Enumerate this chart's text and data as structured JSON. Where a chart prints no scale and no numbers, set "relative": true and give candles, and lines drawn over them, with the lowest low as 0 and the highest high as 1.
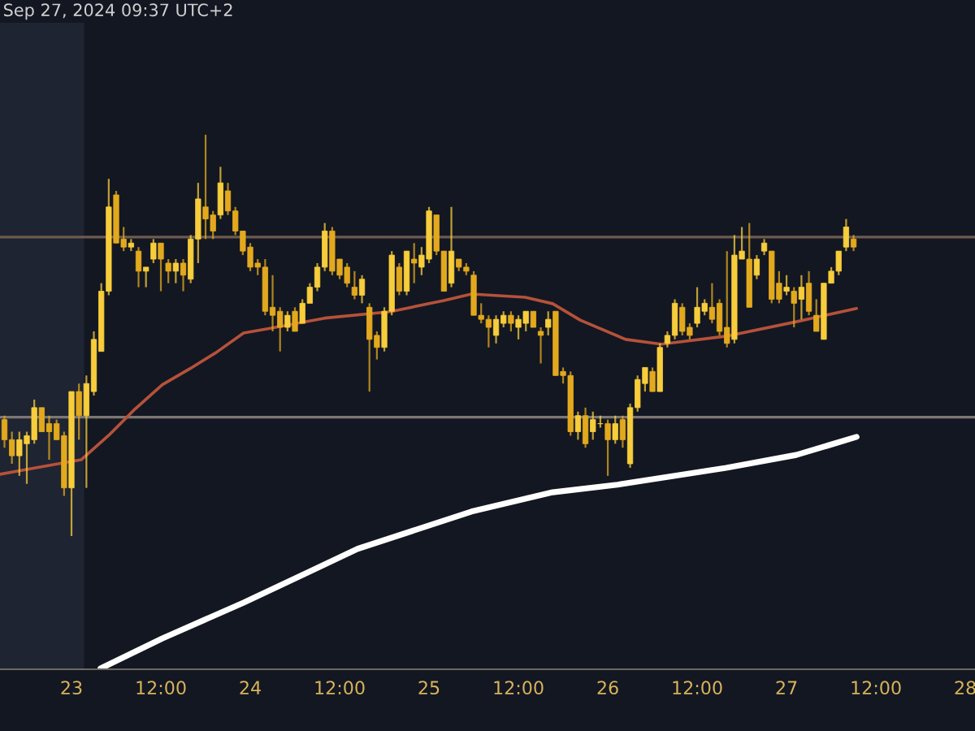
{
  "chart_data": {
    "type": "candlestick",
    "relative": true,
    "annotations": [
      "Sep 27, 2024 09:37 UTC+2"
    ],
    "x": [
      "2024-09-22T15:00",
      "2024-09-22T16:00",
      "2024-09-22T17:00",
      "2024-09-22T18:00",
      "2024-09-22T19:00",
      "2024-09-22T20:00",
      "2024-09-22T21:00",
      "2024-09-22T22:00",
      "2024-09-22T23:00",
      "2024-09-23T00:00",
      "2024-09-23T01:00",
      "2024-09-23T02:00",
      "2024-09-23T03:00",
      "2024-09-23T04:00",
      "2024-09-23T05:00",
      "2024-09-23T06:00",
      "2024-09-23T07:00",
      "2024-09-23T08:00",
      "2024-09-23T09:00",
      "2024-09-23T10:00",
      "2024-09-23T11:00",
      "2024-09-23T12:00",
      "2024-09-23T13:00",
      "2024-09-23T14:00",
      "2024-09-23T15:00",
      "2024-09-23T16:00",
      "2024-09-23T17:00",
      "2024-09-23T18:00",
      "2024-09-23T19:00",
      "2024-09-23T20:00",
      "2024-09-23T21:00",
      "2024-09-23T22:00",
      "2024-09-23T23:00",
      "2024-09-24T00:00",
      "2024-09-24T01:00",
      "2024-09-24T02:00",
      "2024-09-24T03:00",
      "2024-09-24T04:00",
      "2024-09-24T05:00",
      "2024-09-24T06:00",
      "2024-09-24T07:00",
      "2024-09-24T08:00",
      "2024-09-24T09:00",
      "2024-09-24T10:00",
      "2024-09-24T11:00",
      "2024-09-24T12:00",
      "2024-09-24T13:00",
      "2024-09-24T14:00",
      "2024-09-24T15:00",
      "2024-09-24T16:00",
      "2024-09-24T17:00",
      "2024-09-24T18:00",
      "2024-09-24T19:00",
      "2024-09-24T20:00",
      "2024-09-24T21:00",
      "2024-09-24T22:00",
      "2024-09-24T23:00",
      "2024-09-25T00:00",
      "2024-09-25T01:00",
      "2024-09-25T02:00",
      "2024-09-25T03:00",
      "2024-09-25T04:00",
      "2024-09-25T05:00",
      "2024-09-25T06:00",
      "2024-09-25T07:00",
      "2024-09-25T08:00",
      "2024-09-25T09:00",
      "2024-09-25T10:00",
      "2024-09-25T11:00",
      "2024-09-25T12:00",
      "2024-09-25T13:00",
      "2024-09-25T14:00",
      "2024-09-25T15:00",
      "2024-09-25T16:00",
      "2024-09-25T17:00",
      "2024-09-25T18:00",
      "2024-09-25T19:00",
      "2024-09-25T20:00",
      "2024-09-25T21:00",
      "2024-09-25T22:00",
      "2024-09-25T23:00",
      "2024-09-26T00:00",
      "2024-09-26T01:00",
      "2024-09-26T02:00",
      "2024-09-26T03:00",
      "2024-09-26T04:00",
      "2024-09-26T05:00",
      "2024-09-26T06:00",
      "2024-09-26T07:00",
      "2024-09-26T08:00",
      "2024-09-26T09:00",
      "2024-09-26T10:00",
      "2024-09-26T11:00",
      "2024-09-26T12:00",
      "2024-09-26T13:00",
      "2024-09-26T14:00",
      "2024-09-26T15:00",
      "2024-09-26T16:00",
      "2024-09-26T17:00",
      "2024-09-26T18:00",
      "2024-09-26T19:00",
      "2024-09-26T20:00",
      "2024-09-26T21:00",
      "2024-09-26T22:00",
      "2024-09-26T23:00",
      "2024-09-27T00:00",
      "2024-09-27T01:00",
      "2024-09-27T02:00",
      "2024-09-27T03:00",
      "2024-09-27T04:00",
      "2024-09-27T05:00",
      "2024-09-27T06:00",
      "2024-09-27T07:00",
      "2024-09-27T08:00",
      "2024-09-27T09:00"
    ],
    "ohlc": [
      [
        0.29,
        0.3,
        0.22,
        0.24
      ],
      [
        0.24,
        0.26,
        0.18,
        0.2
      ],
      [
        0.2,
        0.26,
        0.15,
        0.24
      ],
      [
        0.23,
        0.26,
        0.13,
        0.25
      ],
      [
        0.24,
        0.34,
        0.23,
        0.32
      ],
      [
        0.32,
        0.32,
        0.26,
        0.26
      ],
      [
        0.28,
        0.3,
        0.19,
        0.26
      ],
      [
        0.28,
        0.29,
        0.24,
        0.24
      ],
      [
        0.25,
        0.26,
        0.1,
        0.12
      ],
      [
        0.12,
        0.36,
        0.0,
        0.36
      ],
      [
        0.36,
        0.38,
        0.24,
        0.3
      ],
      [
        0.3,
        0.4,
        0.12,
        0.38
      ],
      [
        0.36,
        0.51,
        0.35,
        0.49
      ],
      [
        0.46,
        0.63,
        0.46,
        0.61
      ],
      [
        0.61,
        0.89,
        0.6,
        0.82
      ],
      [
        0.85,
        0.86,
        0.73,
        0.73
      ],
      [
        0.74,
        0.77,
        0.71,
        0.72
      ],
      [
        0.72,
        0.74,
        0.71,
        0.73
      ],
      [
        0.71,
        0.72,
        0.62,
        0.66
      ],
      [
        0.66,
        0.67,
        0.62,
        0.67
      ],
      [
        0.69,
        0.74,
        0.68,
        0.73
      ],
      [
        0.73,
        0.73,
        0.61,
        0.69
      ],
      [
        0.68,
        0.69,
        0.63,
        0.66
      ],
      [
        0.66,
        0.69,
        0.63,
        0.68
      ],
      [
        0.68,
        0.69,
        0.61,
        0.65
      ],
      [
        0.64,
        0.75,
        0.63,
        0.74
      ],
      [
        0.74,
        0.88,
        0.68,
        0.84
      ],
      [
        0.82,
        1.0,
        0.74,
        0.79
      ],
      [
        0.8,
        0.81,
        0.74,
        0.76
      ],
      [
        0.8,
        0.92,
        0.79,
        0.88
      ],
      [
        0.86,
        0.88,
        0.8,
        0.81
      ],
      [
        0.81,
        0.82,
        0.75,
        0.76
      ],
      [
        0.76,
        0.76,
        0.7,
        0.71
      ],
      [
        0.72,
        0.73,
        0.66,
        0.67
      ],
      [
        0.68,
        0.69,
        0.65,
        0.67
      ],
      [
        0.67,
        0.69,
        0.55,
        0.56
      ],
      [
        0.57,
        0.65,
        0.51,
        0.55
      ],
      [
        0.56,
        0.57,
        0.46,
        0.52
      ],
      [
        0.52,
        0.56,
        0.51,
        0.55
      ],
      [
        0.56,
        0.57,
        0.51,
        0.51
      ],
      [
        0.53,
        0.59,
        0.53,
        0.58
      ],
      [
        0.58,
        0.63,
        0.58,
        0.62
      ],
      [
        0.62,
        0.68,
        0.61,
        0.67
      ],
      [
        0.67,
        0.78,
        0.66,
        0.76
      ],
      [
        0.76,
        0.77,
        0.65,
        0.66
      ],
      [
        0.69,
        0.69,
        0.64,
        0.65
      ],
      [
        0.67,
        0.68,
        0.62,
        0.63
      ],
      [
        0.62,
        0.66,
        0.59,
        0.6
      ],
      [
        0.6,
        0.65,
        0.58,
        0.64
      ],
      [
        0.57,
        0.58,
        0.36,
        0.49
      ],
      [
        0.5,
        0.51,
        0.44,
        0.47
      ],
      [
        0.47,
        0.57,
        0.46,
        0.56
      ],
      [
        0.56,
        0.71,
        0.55,
        0.7
      ],
      [
        0.67,
        0.68,
        0.6,
        0.61
      ],
      [
        0.61,
        0.71,
        0.6,
        0.71
      ],
      [
        0.69,
        0.73,
        0.63,
        0.68
      ],
      [
        0.67,
        0.72,
        0.65,
        0.7
      ],
      [
        0.69,
        0.82,
        0.68,
        0.81
      ],
      [
        0.8,
        0.8,
        0.7,
        0.71
      ],
      [
        0.71,
        0.71,
        0.61,
        0.61
      ],
      [
        0.63,
        0.82,
        0.62,
        0.71
      ],
      [
        0.69,
        0.69,
        0.66,
        0.67
      ],
      [
        0.67,
        0.68,
        0.65,
        0.66
      ],
      [
        0.65,
        0.66,
        0.55,
        0.55
      ],
      [
        0.55,
        0.58,
        0.53,
        0.54
      ],
      [
        0.54,
        0.55,
        0.47,
        0.52
      ],
      [
        0.5,
        0.55,
        0.48,
        0.54
      ],
      [
        0.53,
        0.56,
        0.52,
        0.55
      ],
      [
        0.55,
        0.56,
        0.51,
        0.53
      ],
      [
        0.52,
        0.55,
        0.49,
        0.54
      ],
      [
        0.53,
        0.56,
        0.51,
        0.56
      ],
      [
        0.56,
        0.56,
        0.52,
        0.52
      ],
      [
        0.51,
        0.52,
        0.43,
        0.5
      ],
      [
        0.52,
        0.56,
        0.5,
        0.54
      ],
      [
        0.56,
        0.56,
        0.4,
        0.4
      ],
      [
        0.41,
        0.42,
        0.38,
        0.4
      ],
      [
        0.4,
        0.41,
        0.25,
        0.26
      ],
      [
        0.26,
        0.31,
        0.24,
        0.3
      ],
      [
        0.3,
        0.32,
        0.22,
        0.23
      ],
      [
        0.26,
        0.31,
        0.24,
        0.29
      ],
      [
        0.28,
        0.3,
        0.27,
        0.28
      ],
      [
        0.28,
        0.29,
        0.15,
        0.24
      ],
      [
        0.24,
        0.3,
        0.23,
        0.28
      ],
      [
        0.29,
        0.3,
        0.22,
        0.24
      ],
      [
        0.18,
        0.33,
        0.17,
        0.32
      ],
      [
        0.32,
        0.4,
        0.31,
        0.39
      ],
      [
        0.38,
        0.42,
        0.36,
        0.42
      ],
      [
        0.41,
        0.42,
        0.36,
        0.36
      ],
      [
        0.36,
        0.48,
        0.36,
        0.47
      ],
      [
        0.48,
        0.51,
        0.47,
        0.5
      ],
      [
        0.5,
        0.59,
        0.49,
        0.58
      ],
      [
        0.57,
        0.58,
        0.5,
        0.51
      ],
      [
        0.52,
        0.53,
        0.49,
        0.5
      ],
      [
        0.53,
        0.62,
        0.52,
        0.57
      ],
      [
        0.56,
        0.59,
        0.55,
        0.58
      ],
      [
        0.57,
        0.63,
        0.53,
        0.54
      ],
      [
        0.58,
        0.59,
        0.5,
        0.51
      ],
      [
        0.52,
        0.71,
        0.47,
        0.48
      ],
      [
        0.49,
        0.75,
        0.48,
        0.7
      ],
      [
        0.69,
        0.77,
        0.69,
        0.71
      ],
      [
        0.69,
        0.78,
        0.57,
        0.57
      ],
      [
        0.65,
        0.7,
        0.64,
        0.69
      ],
      [
        0.71,
        0.74,
        0.7,
        0.73
      ],
      [
        0.71,
        0.71,
        0.58,
        0.59
      ],
      [
        0.63,
        0.66,
        0.58,
        0.59
      ],
      [
        0.61,
        0.65,
        0.6,
        0.62
      ],
      [
        0.61,
        0.62,
        0.52,
        0.58
      ],
      [
        0.59,
        0.65,
        0.54,
        0.62
      ],
      [
        0.63,
        0.66,
        0.55,
        0.56
      ],
      [
        0.55,
        0.59,
        0.51,
        0.51
      ],
      [
        0.49,
        0.63,
        0.49,
        0.63
      ],
      [
        0.63,
        0.67,
        0.63,
        0.66
      ],
      [
        0.66,
        0.71,
        0.65,
        0.71
      ],
      [
        0.72,
        0.79,
        0.71,
        0.77
      ],
      [
        0.74,
        0.75,
        0.71,
        0.72
      ]
    ],
    "series": [
      {
        "type": "line",
        "color": "#b5523a",
        "x": [
          "2024-09-22T14:24",
          "2024-09-22T21:36",
          "2024-09-23T01:18",
          "2024-09-23T05:00",
          "2024-09-23T08:30",
          "2024-09-23T12:12",
          "2024-09-23T15:54",
          "2024-09-23T19:24",
          "2024-09-23T23:06",
          "2024-09-24T02:48",
          "2024-09-24T10:00",
          "2024-09-24T18:48",
          "2024-09-25T02:00",
          "2024-09-25T05:42",
          "2024-09-25T12:54",
          "2024-09-25T16:36",
          "2024-09-25T20:18",
          "2024-09-26T02:24",
          "2024-09-26T07:12",
          "2024-09-26T15:54",
          "2024-09-27T01:18",
          "2024-09-27T09:24"
        ],
        "values": [
          0.154,
          0.178,
          0.19,
          0.251,
          0.316,
          0.377,
          0.417,
          0.457,
          0.506,
          0.518,
          0.543,
          0.559,
          0.587,
          0.603,
          0.595,
          0.579,
          0.538,
          0.49,
          0.478,
          0.498,
          0.534,
          0.567
        ]
      },
      {
        "type": "line",
        "color": "#ffffff",
        "x": [
          "2024-09-23T03:54",
          "2024-09-23T12:12",
          "2024-09-23T23:06",
          "2024-09-24T07:54",
          "2024-09-24T14:24",
          "2024-09-25T05:42",
          "2024-09-25T16:36",
          "2024-09-26T01:18",
          "2024-09-26T15:54",
          "2024-09-27T01:18",
          "2024-09-27T09:24"
        ],
        "values": [
          -0.33,
          -0.255,
          -0.166,
          -0.089,
          -0.032,
          0.061,
          0.109,
          0.128,
          0.17,
          0.202,
          0.247
        ]
      }
    ],
    "ref_lines": [
      {
        "axis": "y",
        "value": 0.745,
        "color": "#6e5a4e"
      },
      {
        "axis": "y",
        "value": 0.296,
        "color": "#7c7674"
      }
    ],
    "bands": [
      {
        "axis": "x",
        "from": "2024-09-22T14:24",
        "to": "2024-09-23T01:42",
        "color": "#1e2431"
      }
    ],
    "xlim": [
      "2024-09-22T14:24",
      "2024-09-28T01:18"
    ],
    "xticks": [
      {
        "value": "2024-09-23",
        "label": "23"
      },
      {
        "value": "2024-09-23T12:00",
        "label": "12:00"
      },
      {
        "value": "2024-09-24",
        "label": "24"
      },
      {
        "value": "2024-09-24T12:00",
        "label": "12:00"
      },
      {
        "value": "2024-09-25",
        "label": "25"
      },
      {
        "value": "2024-09-25T12:00",
        "label": "12:00"
      },
      {
        "value": "2024-09-26",
        "label": "26"
      },
      {
        "value": "2024-09-26T12:00",
        "label": "12:00"
      },
      {
        "value": "2024-09-27",
        "label": "27"
      },
      {
        "value": "2024-09-27T12:00",
        "label": "12:00"
      },
      {
        "value": "2024-09-28",
        "label": "28"
      }
    ]
  }
}
